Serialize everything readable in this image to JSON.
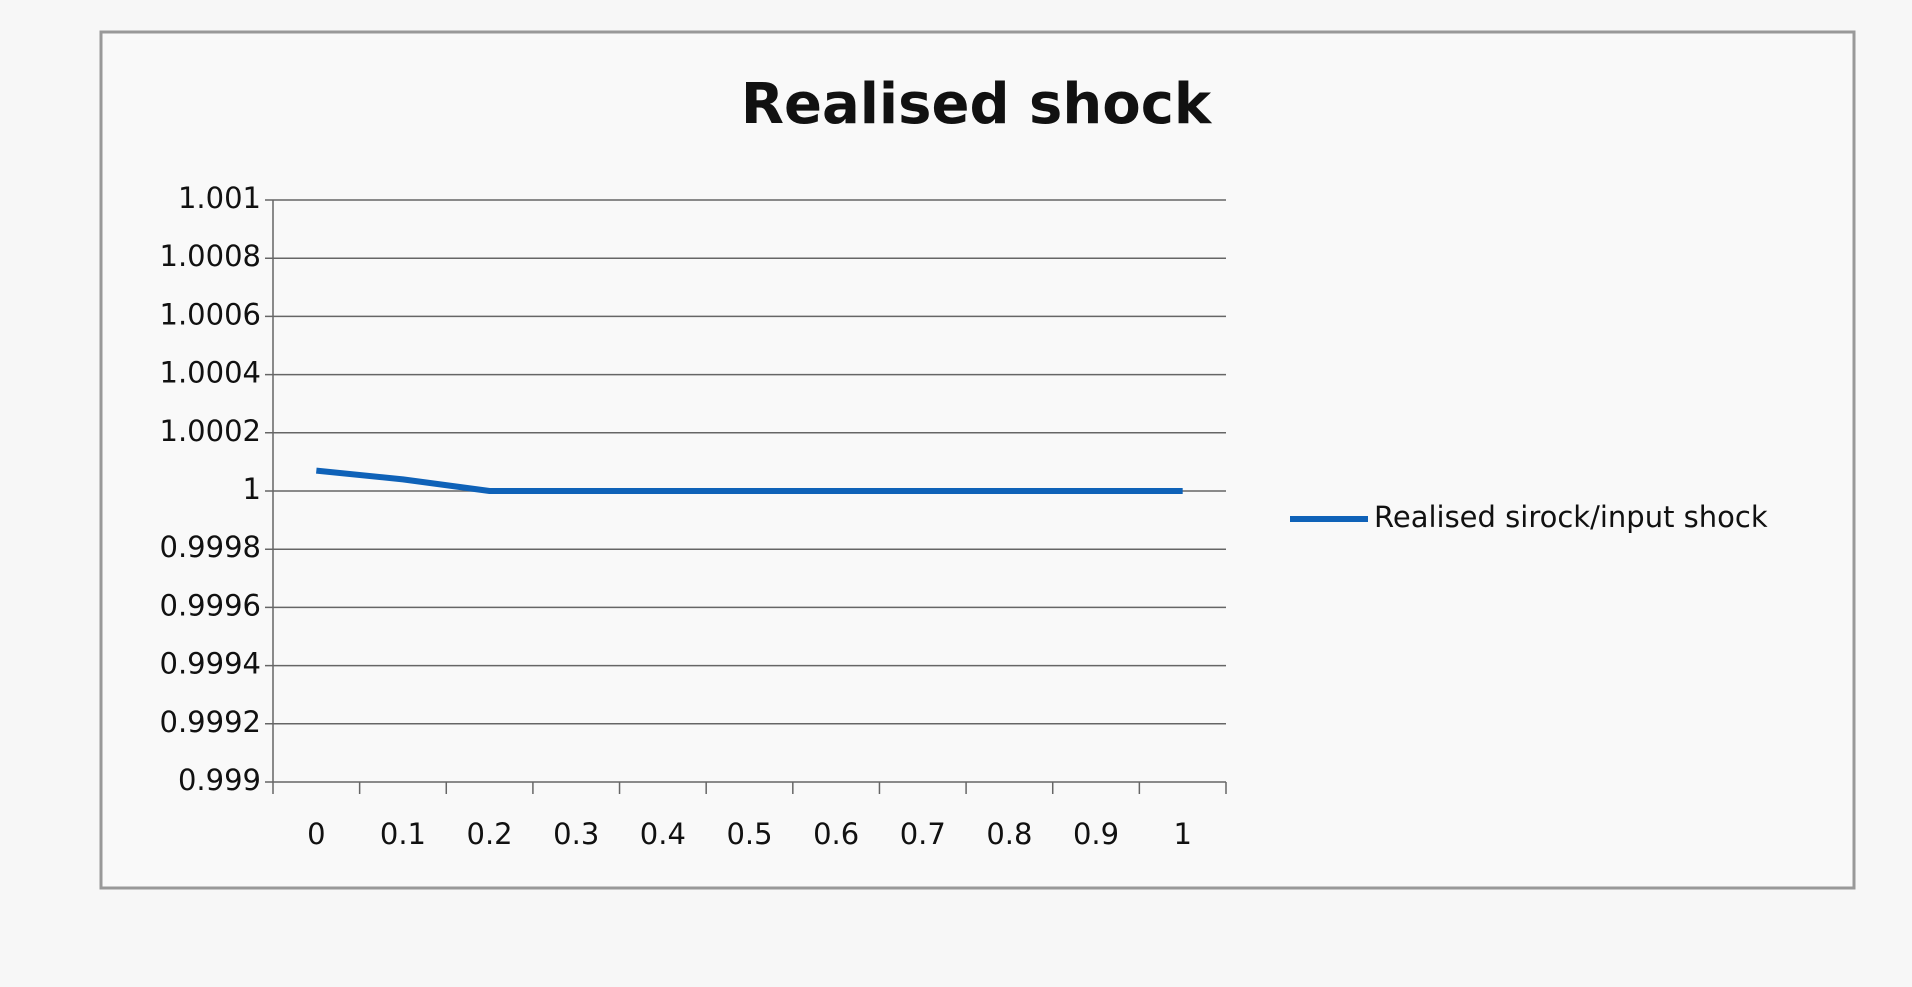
{
  "chart_data": {
    "type": "line",
    "title": "Realised shock",
    "categories": [
      "0",
      "0.1",
      "0.2",
      "0.3",
      "0.4",
      "0.5",
      "0.6",
      "0.7",
      "0.8",
      "0.9",
      "1"
    ],
    "series": [
      {
        "name": "Realised sirock/input shock",
        "color": "#0f62b8",
        "values": [
          1.00007,
          1.00004,
          1,
          1,
          1,
          1,
          1,
          1,
          1,
          1,
          1
        ]
      }
    ],
    "ylim": [
      0.999,
      1.001
    ],
    "yticks": [
      0.999,
      0.9992,
      0.9994,
      0.9996,
      0.9998,
      1,
      1.0002,
      1.0004,
      1.0006,
      1.0008,
      1.001
    ],
    "grid": true,
    "legend": "right"
  }
}
